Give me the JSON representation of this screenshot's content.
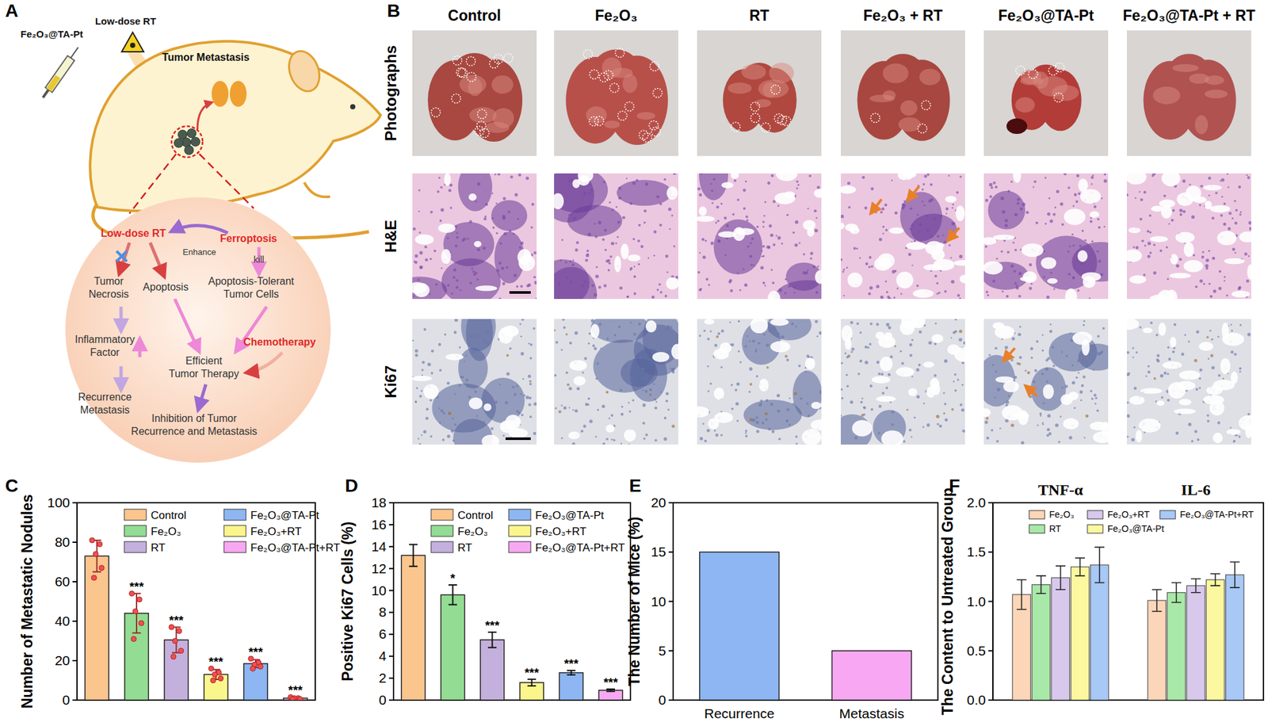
{
  "panels": {
    "labels": [
      "A",
      "B",
      "C",
      "D",
      "E",
      "F"
    ]
  },
  "diagram": {
    "nodes": [
      {
        "lines": [
          "Low-dose RT"
        ]
      },
      {
        "lines": [
          "Fe₂O₃@TA-Pt"
        ]
      },
      {
        "lines": [
          "Tumor Metastasis"
        ]
      },
      {
        "lines": [
          "Low-dose RT"
        ]
      },
      {
        "lines": [
          "Ferroptosis"
        ]
      },
      {
        "lines": [
          "Enhance"
        ]
      },
      {
        "lines": [
          "kill"
        ]
      },
      {
        "lines": [
          "Tumor",
          "Necrosis"
        ]
      },
      {
        "lines": [
          "Apoptosis"
        ]
      },
      {
        "lines": [
          "Apoptosis-Tolerant",
          "Tumor Cells"
        ]
      },
      {
        "lines": [
          "Inflammatory",
          "Factor"
        ]
      },
      {
        "lines": [
          "Chemotherapy"
        ]
      },
      {
        "lines": [
          "Efficient",
          "Tumor Therapy"
        ]
      },
      {
        "lines": [
          "Recurrence",
          "Metastasis"
        ]
      },
      {
        "lines": [
          "Inhibition of Tumor",
          "Recurrence and Metastasis"
        ]
      }
    ]
  },
  "images": {
    "columns": [
      "Control",
      "Fe₂O₃",
      "RT",
      "Fe₂O₃ + RT",
      "Fe₂O₃@TA-Pt",
      "Fe₂O₃@TA-Pt + RT"
    ],
    "rows": [
      "Photographs",
      "H&E",
      "Ki67"
    ]
  },
  "chart_data": [
    {
      "type": "bar",
      "ylabel": "Number of Metastatic Nodules",
      "categories": [
        "Control",
        "Fe₂O₃",
        "RT",
        "Fe₂O₃+RT",
        "Fe₂O₃@TA-Pt",
        "Fe₂O₃@TA-Pt+RT"
      ],
      "values": [
        73,
        44,
        30.5,
        13,
        18.5,
        1
      ],
      "errors": [
        8,
        10,
        6.5,
        2.5,
        2,
        0.5
      ],
      "points": [
        [
          81,
          79,
          74,
          67,
          62
        ],
        [
          54,
          51,
          45,
          39,
          31
        ],
        [
          37,
          35,
          30,
          25,
          22
        ],
        [
          16,
          14,
          13,
          11,
          10
        ],
        [
          21,
          19,
          18,
          17,
          16
        ],
        [
          1.5,
          1,
          1,
          0.5,
          0.5
        ]
      ],
      "annotations": [
        null,
        "***",
        "***",
        "***",
        "***",
        "***"
      ],
      "colors": [
        "#fbc58e",
        "#93dc93",
        "#c4b0dc",
        "#fbf68c",
        "#8db6f2",
        "#f8a8f2"
      ],
      "ylim": [
        0,
        100
      ],
      "yticks": [
        0,
        20,
        40,
        60,
        80,
        100
      ],
      "tick_labels": "y",
      "legend": "top"
    },
    {
      "type": "bar",
      "ylabel": "Positive Ki67 Cells (%)",
      "categories": [
        "Control",
        "Fe₂O₃",
        "RT",
        "Fe₂O₃+RT",
        "Fe₂O₃@TA-Pt",
        "Fe₂O₃@TA-Pt+RT"
      ],
      "values": [
        13.2,
        9.6,
        5.5,
        1.6,
        2.5,
        0.9
      ],
      "errors": [
        1.0,
        0.9,
        0.7,
        0.3,
        0.2,
        0.1
      ],
      "annotations": [
        null,
        "*",
        "***",
        "***",
        "***",
        "***"
      ],
      "colors": [
        "#fbc58e",
        "#93dc93",
        "#c4b0dc",
        "#fbf68c",
        "#8db6f2",
        "#f8a8f2"
      ],
      "ylim": [
        0,
        18
      ],
      "yticks": [
        0,
        2,
        4,
        6,
        8,
        10,
        12,
        14,
        16,
        18
      ],
      "tick_labels": "y",
      "legend": "top"
    },
    {
      "type": "bar",
      "ylabel": "The Number of Mice (%)",
      "categories": [
        "Recurrence",
        "Metastasis"
      ],
      "values": [
        15,
        5
      ],
      "colors": [
        "#8db6f2",
        "#f8a8f2"
      ],
      "ylim": [
        0,
        20
      ],
      "yticks": [
        0,
        5,
        10,
        15,
        20
      ]
    },
    {
      "type": "bar",
      "ylabel": "The Content to Untreated Group",
      "categories": [
        "TNF-α",
        "IL-6"
      ],
      "series": [
        {
          "name": "Fe₂O₃",
          "color": "#fcd6b8",
          "values": [
            1.07,
            1.01
          ],
          "errors": [
            0.15,
            0.11
          ]
        },
        {
          "name": "RT",
          "color": "#a8e8a8",
          "values": [
            1.17,
            1.09
          ],
          "errors": [
            0.09,
            0.1
          ]
        },
        {
          "name": "Fe₂O₃+RT",
          "color": "#d8c8ec",
          "values": [
            1.24,
            1.16
          ],
          "errors": [
            0.12,
            0.07
          ]
        },
        {
          "name": "Fe₂O₃@TA-Pt",
          "color": "#fbf8a0",
          "values": [
            1.35,
            1.22
          ],
          "errors": [
            0.09,
            0.06
          ]
        },
        {
          "name": "Fe₂O₃@TA-Pt+RT",
          "color": "#a8c8f6",
          "values": [
            1.37,
            1.27
          ],
          "errors": [
            0.18,
            0.13
          ]
        }
      ],
      "ylim": [
        0,
        2
      ],
      "yticks": [
        {
          "value": 0,
          "label": "0.0"
        },
        0.5,
        {
          "value": 1,
          "label": "1.0"
        },
        1.5,
        {
          "value": 2,
          "label": "2.0"
        }
      ],
      "tick_labels": "y",
      "legend": "top"
    }
  ]
}
